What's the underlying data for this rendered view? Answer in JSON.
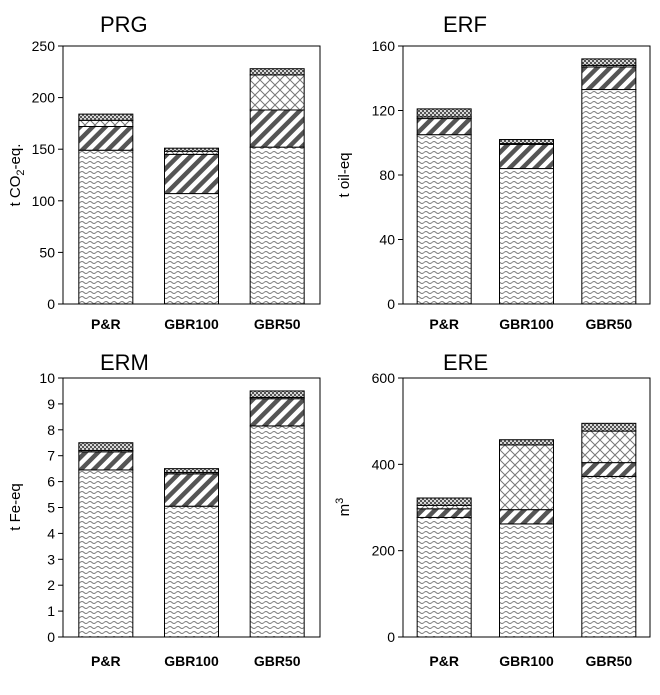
{
  "chart_data": [
    {
      "type": "bar",
      "stacked": true,
      "title": "PRG",
      "ylabel": {
        "main": "t CO",
        "sub": "2",
        "tail": "-eq."
      },
      "categories": [
        "P&R",
        "GBR100",
        "GBR50"
      ],
      "ylim": [
        0,
        250
      ],
      "yticks": [
        0,
        50,
        100,
        150,
        200,
        250
      ],
      "tick_labels": [
        "0",
        "50",
        "100",
        "150",
        "200",
        "250"
      ],
      "grid": false,
      "series": [
        {
          "pattern": "waves",
          "values": [
            149,
            107,
            152
          ]
        },
        {
          "pattern": "diagonal",
          "values": [
            23,
            38,
            36
          ]
        },
        {
          "pattern": "crosshatch",
          "values": [
            6,
            3,
            34
          ]
        },
        {
          "pattern": "checker",
          "values": [
            6,
            3,
            6
          ]
        }
      ]
    },
    {
      "type": "bar",
      "stacked": true,
      "title": "ERF",
      "ylabel": {
        "main": "t oil-eq"
      },
      "categories": [
        "P&R",
        "GBR100",
        "GBR50"
      ],
      "ylim": [
        0,
        160
      ],
      "yticks": [
        0,
        40,
        80,
        120,
        160
      ],
      "tick_labels": [
        "0",
        "40",
        "80",
        "120",
        "160"
      ],
      "grid": false,
      "series": [
        {
          "pattern": "waves",
          "values": [
            105,
            84,
            133
          ]
        },
        {
          "pattern": "diagonal",
          "values": [
            10,
            15,
            14
          ]
        },
        {
          "pattern": "crosshatch",
          "values": [
            1,
            0.5,
            1
          ]
        },
        {
          "pattern": "checker",
          "values": [
            5,
            2.5,
            4
          ]
        }
      ]
    },
    {
      "type": "bar",
      "stacked": true,
      "title": "ERM",
      "ylabel": {
        "main": "t Fe-eq"
      },
      "categories": [
        "P&R",
        "GBR100",
        "GBR50"
      ],
      "ylim": [
        0,
        10
      ],
      "yticks": [
        0,
        1,
        2,
        3,
        4,
        5,
        6,
        7,
        8,
        9,
        10
      ],
      "tick_labels": [
        "0",
        "1",
        "2",
        "3",
        "4",
        "5",
        "6",
        "7",
        "8",
        "9",
        "10"
      ],
      "grid": false,
      "series": [
        {
          "pattern": "waves",
          "values": [
            6.45,
            5.05,
            8.15
          ]
        },
        {
          "pattern": "diagonal",
          "values": [
            0.7,
            1.25,
            1.05
          ]
        },
        {
          "pattern": "crosshatch",
          "values": [
            0.05,
            0.05,
            0.05
          ]
        },
        {
          "pattern": "checker",
          "values": [
            0.3,
            0.15,
            0.25
          ]
        }
      ]
    },
    {
      "type": "bar",
      "stacked": true,
      "title": "ERE",
      "ylabel": {
        "main": "m",
        "sup": "3"
      },
      "categories": [
        "P&R",
        "GBR100",
        "GBR50"
      ],
      "ylim": [
        0,
        600
      ],
      "yticks": [
        0,
        200,
        400,
        600
      ],
      "tick_labels": [
        "0",
        "200",
        "400",
        "600"
      ],
      "grid": false,
      "series": [
        {
          "pattern": "waves",
          "values": [
            277,
            262,
            372
          ]
        },
        {
          "pattern": "diagonal",
          "values": [
            20,
            33,
            32
          ]
        },
        {
          "pattern": "crosshatch",
          "values": [
            8,
            150,
            73
          ]
        },
        {
          "pattern": "checker",
          "values": [
            17,
            12,
            18
          ]
        }
      ]
    }
  ]
}
